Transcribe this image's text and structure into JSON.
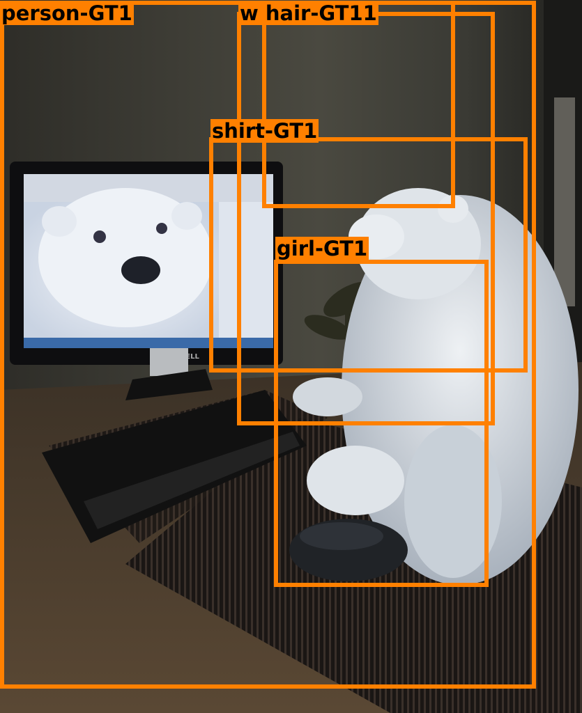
{
  "image": {
    "description_colors": {
      "box": "#ff8000",
      "label_text": "#000000",
      "wall": "#3d3c35",
      "desk": "#4a3b2c",
      "bear": "#d8dde2"
    },
    "monitor_brand": "DELL"
  },
  "annotations": [
    {
      "id": "person",
      "label": "person-GT1"
    },
    {
      "id": "w-hair",
      "label": "w hair-GT11"
    },
    {
      "id": "shirt",
      "label": "shirt-GT1"
    },
    {
      "id": "girl",
      "label": "girl-GT1"
    }
  ]
}
